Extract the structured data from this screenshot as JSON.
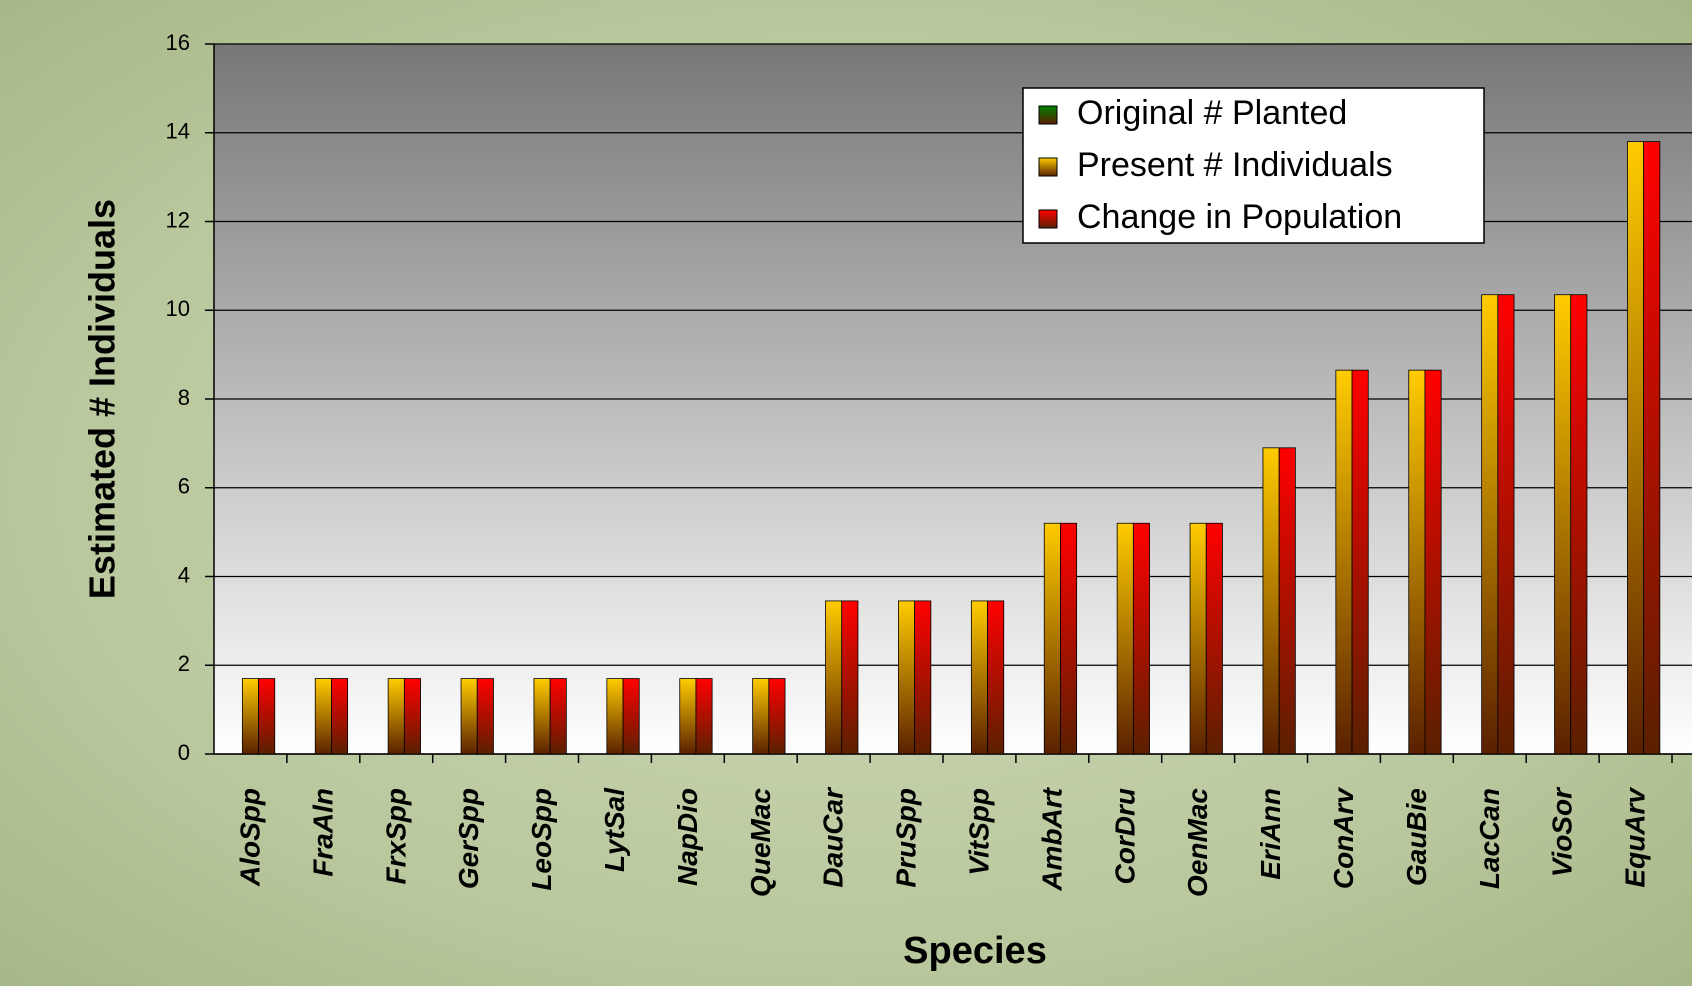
{
  "chart_data": {
    "type": "bar",
    "x_label": "Species",
    "y_label": "Estimated # Individuals",
    "categories": [
      "AloSpp",
      "FraAln",
      "FrxSpp",
      "GerSpp",
      "LeoSpp",
      "LytSal",
      "NapDio",
      "QueMac",
      "DauCar",
      "PruSpp",
      "VitSpp",
      "AmbArt",
      "CorDru",
      "OenMac",
      "EriAnn",
      "ConArv",
      "GauBie",
      "LacCan",
      "VioSor",
      "EquArv"
    ],
    "series": [
      {
        "name": "Original # Planted",
        "color": "#008000",
        "values": [
          0,
          0,
          0,
          0,
          0,
          0,
          0,
          0,
          0,
          0,
          0,
          0,
          0,
          0,
          0,
          0,
          0,
          0,
          0,
          0
        ]
      },
      {
        "name": "Present # Individuals",
        "color": "#ffcc00",
        "values": [
          1.7,
          1.7,
          1.7,
          1.7,
          1.7,
          1.7,
          1.7,
          1.7,
          3.45,
          3.45,
          3.45,
          5.2,
          5.2,
          5.2,
          6.9,
          8.65,
          8.65,
          10.35,
          10.35,
          13.8
        ]
      },
      {
        "name": "Change in Population",
        "color": "#ff0000",
        "values": [
          1.7,
          1.7,
          1.7,
          1.7,
          1.7,
          1.7,
          1.7,
          1.7,
          3.45,
          3.45,
          3.45,
          5.2,
          5.2,
          5.2,
          6.9,
          8.65,
          8.65,
          10.35,
          10.35,
          13.8
        ]
      }
    ],
    "ylim": [
      0,
      16
    ],
    "yticks": [
      0,
      2,
      4,
      6,
      8,
      10,
      12,
      14,
      16
    ],
    "grid": true,
    "legend": "top-right"
  }
}
